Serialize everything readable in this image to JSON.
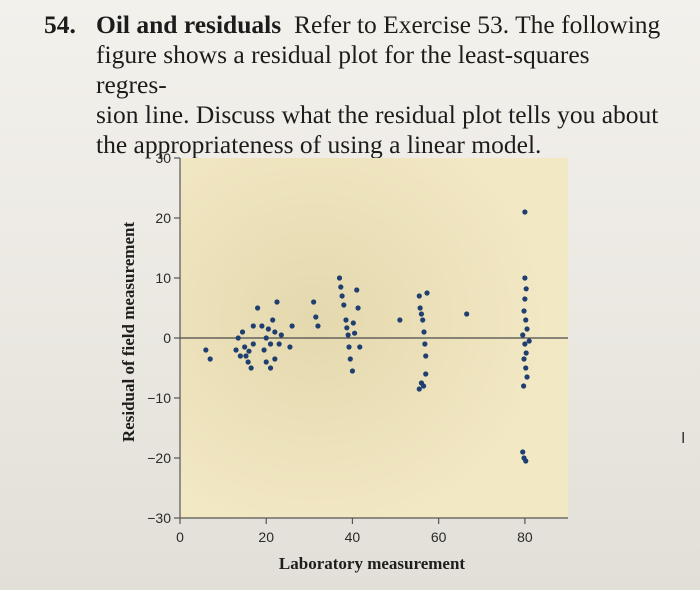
{
  "exercise": {
    "number": "54.",
    "title": "Oil and residuals",
    "text": "Refer to Exercise 53. The following figure shows a residual plot for the least-squares regression line. Discuss what the residual plot tells you about the appropriateness of using a linear model.",
    "lines": [
      "Refer to Exercise 53. The following",
      "figure shows a residual plot for the least-squares regres-",
      "sion line. Discuss what the residual plot tells you about",
      "the appropriateness of using a linear model."
    ]
  },
  "cursor": {
    "icon": "text-cursor-icon",
    "glyph": "I"
  },
  "chart_data": {
    "type": "scatter",
    "xlabel": "Laboratory measurement",
    "ylabel": "Residual of field measurement",
    "xlim": [
      0,
      90
    ],
    "ylim": [
      -30,
      30
    ],
    "xticks": [
      0,
      20,
      40,
      60,
      80
    ],
    "yticks": [
      30,
      20,
      10,
      0,
      -10,
      -20,
      -30
    ],
    "yticklabels": [
      "30",
      "20",
      "10",
      "0",
      "−10",
      "−20",
      "−30"
    ],
    "reference_line": 0,
    "grid": false,
    "colors": {
      "background": "#efe4bd",
      "points": "#1f3f70",
      "axis": "#555555"
    },
    "points": [
      [
        6,
        -2
      ],
      [
        7,
        -3.5
      ],
      [
        13,
        -2
      ],
      [
        13.5,
        0
      ],
      [
        14,
        -3
      ],
      [
        14.5,
        1
      ],
      [
        15,
        -1.5
      ],
      [
        15.3,
        -3
      ],
      [
        15.8,
        -4
      ],
      [
        16,
        -2.2
      ],
      [
        16.5,
        -5
      ],
      [
        17,
        2
      ],
      [
        17,
        -1
      ],
      [
        18,
        5
      ],
      [
        19,
        2
      ],
      [
        19.5,
        -2
      ],
      [
        20,
        0
      ],
      [
        20,
        -4
      ],
      [
        20.5,
        1.5
      ],
      [
        21,
        -1
      ],
      [
        21,
        -5
      ],
      [
        21.5,
        3
      ],
      [
        22,
        1
      ],
      [
        22,
        -3.5
      ],
      [
        22.5,
        6
      ],
      [
        23,
        -1
      ],
      [
        23.5,
        0.5
      ],
      [
        25.5,
        -1.5
      ],
      [
        26,
        2
      ],
      [
        31,
        6
      ],
      [
        31.5,
        3.5
      ],
      [
        32,
        2
      ],
      [
        37,
        10
      ],
      [
        37.3,
        8.5
      ],
      [
        37.6,
        7
      ],
      [
        38,
        5.5
      ],
      [
        38.5,
        3
      ],
      [
        38.7,
        1.7
      ],
      [
        39,
        0.5
      ],
      [
        39.2,
        -1.5
      ],
      [
        39.5,
        -3.5
      ],
      [
        40,
        -5.5
      ],
      [
        40.2,
        2.5
      ],
      [
        40.5,
        0.8
      ],
      [
        41,
        8
      ],
      [
        41.3,
        5
      ],
      [
        41.7,
        -1.5
      ],
      [
        51,
        3
      ],
      [
        55.5,
        7
      ],
      [
        55.7,
        5
      ],
      [
        56,
        4
      ],
      [
        56.3,
        3
      ],
      [
        56.6,
        1
      ],
      [
        56.8,
        -1
      ],
      [
        57,
        -3
      ],
      [
        57.3,
        7.5
      ],
      [
        55.5,
        -8.5
      ],
      [
        56,
        -7.5
      ],
      [
        56.5,
        -8
      ],
      [
        57,
        -6
      ],
      [
        66.5,
        4
      ],
      [
        80,
        21
      ],
      [
        80,
        10
      ],
      [
        80.3,
        8.2
      ],
      [
        80,
        6.5
      ],
      [
        79.8,
        4.5
      ],
      [
        80.2,
        3
      ],
      [
        80.5,
        1.5
      ],
      [
        79.5,
        0.5
      ],
      [
        81,
        -0.5
      ],
      [
        80,
        -1
      ],
      [
        80.3,
        -2.5
      ],
      [
        79.8,
        -3.5
      ],
      [
        80.2,
        -5
      ],
      [
        80.5,
        -6.5
      ],
      [
        79.7,
        -8
      ],
      [
        79.5,
        -19
      ],
      [
        79.8,
        -20
      ],
      [
        80.2,
        -20.5
      ]
    ]
  }
}
